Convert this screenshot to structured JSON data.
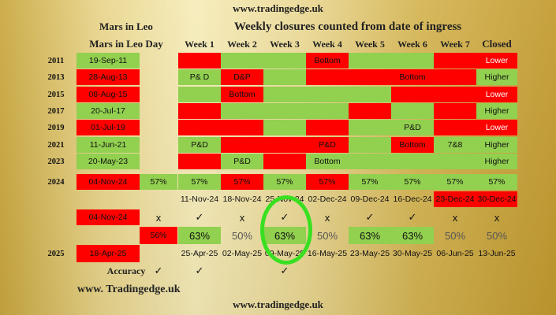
{
  "site_top": "www.tradingedge.uk",
  "site_mid": "www. Tradingedge.uk",
  "site_bottom": "www.tradingedge.uk",
  "header": {
    "label1": "Mars in Leo",
    "label2": "Mars in Leo Day",
    "title": "Weekly closures counted from date of ingress",
    "weeks": [
      "Week 1",
      "Week 2",
      "Week 3",
      "Week 4",
      "Week 5",
      "Week 6",
      "Week 7",
      "Closed"
    ]
  },
  "colors": {
    "red": "#ff0000",
    "green": "#92d050"
  },
  "history": [
    {
      "year": "2011",
      "date": "19-Sep-11",
      "date_color": "green",
      "cells": [
        "red",
        "green",
        "green",
        "red",
        "green",
        "green",
        "red",
        "red"
      ],
      "texts": [
        "",
        "",
        "",
        "Bottom",
        "",
        "",
        "",
        "Lower"
      ]
    },
    {
      "year": "2013",
      "date": "28-Aug-13",
      "date_color": "red",
      "cells": [
        "green",
        "red",
        "green",
        "red",
        "red",
        "red",
        "red",
        "green"
      ],
      "texts": [
        "P& D",
        "D&P",
        "",
        "",
        "",
        "Bottom",
        "",
        "Higher"
      ]
    },
    {
      "year": "2015",
      "date": "08-Aug-15",
      "date_color": "red",
      "cells": [
        "green",
        "red",
        "green",
        "green",
        "green",
        "red",
        "red",
        "red"
      ],
      "texts": [
        "",
        "Bottom",
        "",
        "",
        "",
        "",
        "",
        "Lower"
      ]
    },
    {
      "year": "2017",
      "date": "20-Jul-17",
      "date_color": "green",
      "cells": [
        "red",
        "green",
        "green",
        "green",
        "red",
        "green",
        "red",
        "green"
      ],
      "texts": [
        "",
        "",
        "",
        "",
        "",
        "",
        "",
        "Higher"
      ]
    },
    {
      "year": "2019",
      "date": "01-Jul-19",
      "date_color": "red",
      "cells": [
        "red",
        "red",
        "green",
        "red",
        "green",
        "green",
        "red",
        "red"
      ],
      "texts": [
        "",
        "",
        "",
        "",
        "",
        "P&D",
        "",
        "Lower"
      ]
    },
    {
      "year": "2021",
      "date": "11-Jun-21",
      "date_color": "green",
      "cells": [
        "green",
        "red",
        "red",
        "red",
        "green",
        "red",
        "green",
        "green"
      ],
      "texts": [
        "P&D",
        "",
        "",
        "P&D",
        "",
        "Bottom",
        "7&8",
        "Higher"
      ]
    },
    {
      "year": "2023",
      "date": "20-May-23",
      "date_color": "green",
      "cells": [
        "red",
        "green",
        "red",
        "green",
        "green",
        "green",
        "green",
        "green"
      ],
      "texts": [
        "",
        "P&D",
        "",
        "Bottom",
        "",
        "",
        "",
        "Higher"
      ]
    }
  ],
  "row2024": {
    "year": "2024",
    "date": "04-Nov-24",
    "pct": "57%",
    "cells": [
      "green",
      "red",
      "green",
      "red",
      "green",
      "green",
      "green",
      "green"
    ],
    "texts": [
      "57%",
      "57%",
      "57%",
      "57%",
      "57%",
      "57%",
      "57%",
      "57%"
    ]
  },
  "dates2024": [
    "11-Nov-24",
    "18-Nov-24",
    "25-Nov-24",
    "02-Dec-24",
    "09-Dec-24",
    "16-Dec-24",
    "23-Dec-24",
    "30-Dec-24"
  ],
  "dates2024_red": [
    false,
    false,
    false,
    false,
    false,
    false,
    true,
    true
  ],
  "marks_row": {
    "date": "04-Nov-24",
    "first": "x",
    "marks": [
      "✓",
      "x",
      "✓",
      "x",
      "✓",
      "✓",
      "x",
      "x"
    ]
  },
  "pct_row": {
    "first": "56%",
    "values": [
      "63%",
      "50%",
      "63%",
      "50%",
      "63%",
      "63%",
      "50%",
      "50%"
    ],
    "green": [
      true,
      false,
      true,
      false,
      true,
      true,
      false,
      false
    ]
  },
  "row2025": {
    "year": "2025",
    "date": "18-Apr-25",
    "dates": [
      "25-Apr-25",
      "02-May-25",
      "09-May-25",
      "16-May-25",
      "23-May-25",
      "30-May-25",
      "06-Jun-25",
      "13-Jun-25"
    ]
  },
  "accuracy": {
    "label": "Accuracy",
    "marks": [
      "✓",
      "✓",
      "",
      "✓"
    ]
  }
}
